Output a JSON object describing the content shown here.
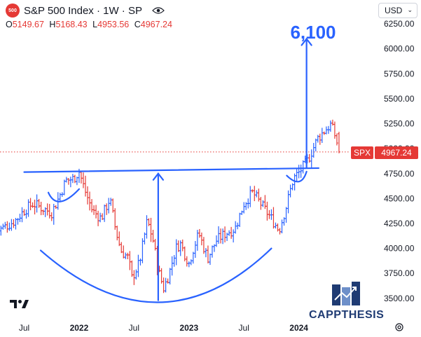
{
  "header": {
    "logo_text": "500",
    "title": "S&P 500 Index · 1W · SP",
    "ohlc": [
      {
        "label": "O",
        "value": "5149.67"
      },
      {
        "label": "H",
        "value": "5168.43"
      },
      {
        "label": "L",
        "value": "4953.56"
      },
      {
        "label": "C",
        "value": "4967.24"
      }
    ]
  },
  "currency": "USD",
  "price_tag": {
    "symbol": "SPX",
    "value": "4967.24",
    "price": 4967.24
  },
  "annotation": {
    "target_label": "6,100"
  },
  "brand": {
    "name": "CAPPTHESIS"
  },
  "colors": {
    "up": "#2962ff",
    "down": "#e53935",
    "annotation": "#2962ff",
    "price_line": "#e53935"
  },
  "chart_data": {
    "type": "ohlc",
    "title": "S&P 500 Index · 1W · SP",
    "y_axis": {
      "ticks": [
        3500,
        3750,
        4000,
        4250,
        4500,
        4750,
        5000,
        5250,
        5500,
        5750,
        6000,
        6250
      ],
      "tick_labels": [
        "3500.00",
        "3750.00",
        "4000.00",
        "4250.00",
        "4500.00",
        "4750.00",
        "5000.00",
        "5250.00",
        "5500.00",
        "5750.00",
        "6000.00",
        "6250.00"
      ],
      "range": [
        3330,
        6300
      ]
    },
    "x_axis": {
      "ticks": [
        {
          "label": "Jul",
          "time": 2021.5,
          "bold": false
        },
        {
          "label": "2022",
          "time": 2022.0,
          "bold": true
        },
        {
          "label": "Jul",
          "time": 2022.5,
          "bold": false
        },
        {
          "label": "2023",
          "time": 2023.0,
          "bold": true
        },
        {
          "label": "Jul",
          "time": 2023.5,
          "bold": false
        },
        {
          "label": "2024",
          "time": 2024.0,
          "bold": true
        }
      ],
      "range": [
        2021.28,
        2024.71
      ]
    },
    "anchors": [
      [
        2021.25,
        4170
      ],
      [
        2021.33,
        4220
      ],
      [
        2021.42,
        4280
      ],
      [
        2021.5,
        4380
      ],
      [
        2021.58,
        4450
      ],
      [
        2021.67,
        4400
      ],
      [
        2021.75,
        4360
      ],
      [
        2021.8,
        4470
      ],
      [
        2021.88,
        4680
      ],
      [
        2021.95,
        4700
      ],
      [
        2022.0,
        4770
      ],
      [
        2022.05,
        4590
      ],
      [
        2022.12,
        4380
      ],
      [
        2022.2,
        4300
      ],
      [
        2022.28,
        4500
      ],
      [
        2022.33,
        4200
      ],
      [
        2022.38,
        3980
      ],
      [
        2022.45,
        3900
      ],
      [
        2022.48,
        3700
      ],
      [
        2022.55,
        3860
      ],
      [
        2022.62,
        4280
      ],
      [
        2022.67,
        4100
      ],
      [
        2022.72,
        3780
      ],
      [
        2022.77,
        3600
      ],
      [
        2022.82,
        3750
      ],
      [
        2022.88,
        4000
      ],
      [
        2022.92,
        4050
      ],
      [
        2023.0,
        3850
      ],
      [
        2023.04,
        4000
      ],
      [
        2023.09,
        4150
      ],
      [
        2023.17,
        3900
      ],
      [
        2023.25,
        4080
      ],
      [
        2023.33,
        4150
      ],
      [
        2023.42,
        4200
      ],
      [
        2023.5,
        4450
      ],
      [
        2023.58,
        4560
      ],
      [
        2023.67,
        4420
      ],
      [
        2023.75,
        4300
      ],
      [
        2023.82,
        4180
      ],
      [
        2023.88,
        4400
      ],
      [
        2023.95,
        4700
      ],
      [
        2024.0,
        4760
      ],
      [
        2024.08,
        4880
      ],
      [
        2024.17,
        5100
      ],
      [
        2024.25,
        5200
      ],
      [
        2024.29,
        5240
      ],
      [
        2024.33,
        5130
      ],
      [
        2024.37,
        4967.24
      ]
    ],
    "last_bar": {
      "open": 5149.67,
      "high": 5168.43,
      "low": 4953.56,
      "close": 4967.24
    },
    "annotations": [
      {
        "type": "resistance-line",
        "from": [
          2021.5,
          4765
        ],
        "to": [
          2024.18,
          4805
        ]
      },
      {
        "type": "cup-arc",
        "start": [
          2021.65,
          3980
        ],
        "bottom": [
          2022.72,
          3460
        ],
        "end": [
          2023.75,
          4000
        ]
      },
      {
        "type": "handle-arc",
        "start": [
          2021.72,
          4560
        ],
        "bottom": [
          2021.83,
          4470
        ],
        "end": [
          2022.0,
          4595
        ]
      },
      {
        "type": "handle-arc",
        "start": [
          2023.89,
          4730
        ],
        "bottom": [
          2024.0,
          4670
        ],
        "end": [
          2024.07,
          4770
        ]
      },
      {
        "type": "measured-move",
        "x": 2022.72,
        "from": 3480,
        "to": 4750
      },
      {
        "type": "target-arrow",
        "x": 2024.07,
        "from": 4810,
        "to": 6100,
        "label": "6,100"
      }
    ]
  }
}
